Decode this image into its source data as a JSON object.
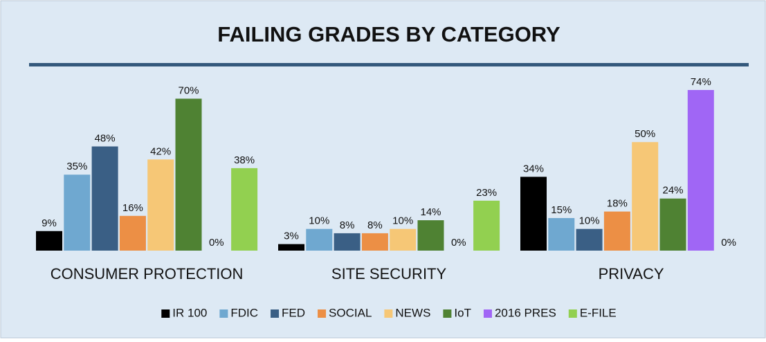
{
  "chart_data": {
    "type": "bar",
    "title": "FAILING GRADES BY CATEGORY",
    "categories": [
      "CONSUMER PROTECTION",
      "SITE SECURITY",
      "PRIVACY"
    ],
    "series": [
      {
        "name": "IR 100",
        "color": "#000000",
        "values": [
          9,
          3,
          34
        ],
        "value_labels": [
          "9%",
          "3%",
          "34%"
        ]
      },
      {
        "name": "FDIC",
        "color": "#6fa8d0",
        "values": [
          35,
          10,
          15
        ],
        "value_labels": [
          "35%",
          "10%",
          "15%"
        ]
      },
      {
        "name": "FED",
        "color": "#3a5f85",
        "values": [
          48,
          8,
          10
        ],
        "value_labels": [
          "48%",
          "8%",
          "10%"
        ]
      },
      {
        "name": "SOCIAL",
        "color": "#ec8f45",
        "values": [
          16,
          8,
          18
        ],
        "value_labels": [
          "16%",
          "8%",
          "18%"
        ]
      },
      {
        "name": "NEWS",
        "color": "#f6c776",
        "values": [
          42,
          10,
          50
        ],
        "value_labels": [
          "42%",
          "10%",
          "50%"
        ]
      },
      {
        "name": "IoT",
        "color": "#4f8233",
        "values": [
          70,
          14,
          24
        ],
        "value_labels": [
          "70%",
          "14%",
          "24%"
        ]
      },
      {
        "name": "2016 PRES",
        "color": "#a066f5",
        "values": [
          0,
          0,
          74
        ],
        "value_labels": [
          "0%",
          "0%",
          "74%"
        ]
      },
      {
        "name": "E-FILE",
        "color": "#92d050",
        "values": [
          38,
          23,
          0
        ],
        "value_labels": [
          "38%",
          "23%",
          "0%"
        ]
      }
    ],
    "legend": "bottom"
  }
}
